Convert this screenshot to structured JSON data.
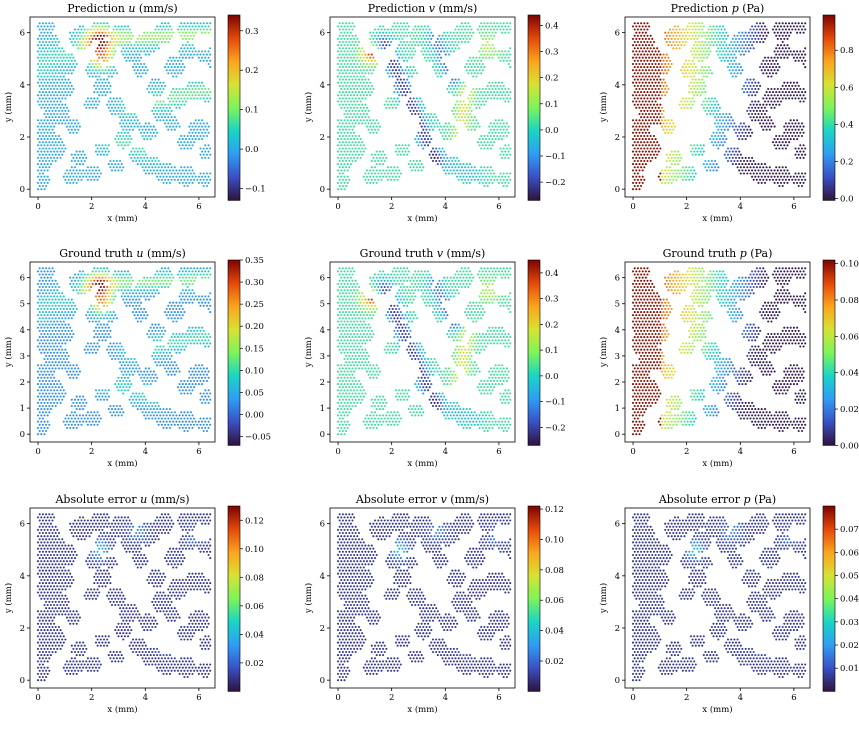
{
  "figure": {
    "colormap": [
      "#30123b",
      "#3a4fc4",
      "#2f9df5",
      "#1ad5c4",
      "#7df45a",
      "#d8e234",
      "#fba41f",
      "#e34909",
      "#7a0403"
    ],
    "panels": [
      {
        "row": 0,
        "col": 0,
        "title": "Prediction u (mm/s)",
        "title_prefix": "Prediction ",
        "title_var": "u",
        "title_suffix": " (mm/s)",
        "xlabel": "x (mm)",
        "ylabel": "y (mm)",
        "field": "u_pred",
        "cbar_ticks": [
          "0.3",
          "0.2",
          "0.1",
          "0.0",
          "−0.1"
        ],
        "cbar_tick_values": [
          0.3,
          0.2,
          0.1,
          0.0,
          -0.1
        ],
        "cbar_range": [
          -0.13,
          0.34
        ]
      },
      {
        "row": 0,
        "col": 1,
        "title": "Prediction v (mm/s)",
        "title_prefix": "Prediction ",
        "title_var": "v",
        "title_suffix": " (mm/s)",
        "xlabel": "x (mm)",
        "ylabel": "y (mm)",
        "field": "v_pred",
        "cbar_ticks": [
          "0.4",
          "0.3",
          "0.2",
          "0.1",
          "0.0",
          "−0.1",
          "−0.2"
        ],
        "cbar_tick_values": [
          0.4,
          0.3,
          0.2,
          0.1,
          0.0,
          -0.1,
          -0.2
        ],
        "cbar_range": [
          -0.27,
          0.44
        ]
      },
      {
        "row": 0,
        "col": 2,
        "title": "Prediction p (Pa)",
        "title_prefix": "Prediction ",
        "title_var": "p",
        "title_suffix": " (Pa)",
        "xlabel": "x (mm)",
        "ylabel": "y (mm)",
        "field": "p_pred",
        "cbar_ticks": [
          "0.8",
          "0.6",
          "0.4",
          "0.2",
          "0.0"
        ],
        "cbar_tick_values": [
          0.8,
          0.6,
          0.4,
          0.2,
          0.0
        ],
        "cbar_range": [
          -0.01,
          0.99
        ]
      },
      {
        "row": 1,
        "col": 0,
        "title": "Ground truth u (mm/s)",
        "title_prefix": "Ground truth ",
        "title_var": "u",
        "title_suffix": " (mm/s)",
        "xlabel": "x (mm)",
        "ylabel": "y (mm)",
        "field": "u_true",
        "cbar_ticks": [
          "0.35",
          "0.30",
          "0.25",
          "0.20",
          "0.15",
          "0.10",
          "0.05",
          "0.00",
          "−0.05"
        ],
        "cbar_tick_values": [
          0.35,
          0.3,
          0.25,
          0.2,
          0.15,
          0.1,
          0.05,
          0.0,
          -0.05
        ],
        "cbar_range": [
          -0.07,
          0.35
        ]
      },
      {
        "row": 1,
        "col": 1,
        "title": "Ground truth v (mm/s)",
        "title_prefix": "Ground truth ",
        "title_var": "v",
        "title_suffix": " (mm/s)",
        "xlabel": "x (mm)",
        "ylabel": "y (mm)",
        "field": "v_true",
        "cbar_ticks": [
          "0.4",
          "0.3",
          "0.2",
          "0.1",
          "0.0",
          "−0.1",
          "−0.2"
        ],
        "cbar_tick_values": [
          0.4,
          0.3,
          0.2,
          0.1,
          0.0,
          -0.1,
          -0.2
        ],
        "cbar_range": [
          -0.27,
          0.45
        ]
      },
      {
        "row": 1,
        "col": 2,
        "title": "Ground truth p (Pa)",
        "title_prefix": "Ground truth ",
        "title_var": "p",
        "title_suffix": " (Pa)",
        "xlabel": "x (mm)",
        "ylabel": "y (mm)",
        "field": "p_true",
        "cbar_ticks": [
          "0.10",
          "0.08",
          "0.06",
          "0.04",
          "0.02",
          "0.00"
        ],
        "cbar_tick_values": [
          0.1,
          0.08,
          0.06,
          0.04,
          0.02,
          0.0
        ],
        "cbar_range": [
          0.0,
          0.102
        ]
      },
      {
        "row": 2,
        "col": 0,
        "title": "Absolute error u (mm/s)",
        "title_prefix": "Absolute error ",
        "title_var": "u",
        "title_suffix": " (mm/s)",
        "xlabel": "x (mm)",
        "ylabel": "y (mm)",
        "field": "u_err",
        "cbar_ticks": [
          "0.12",
          "0.10",
          "0.08",
          "0.06",
          "0.04",
          "0.02"
        ],
        "cbar_tick_values": [
          0.12,
          0.1,
          0.08,
          0.06,
          0.04,
          0.02
        ],
        "cbar_range": [
          0.0,
          0.13
        ]
      },
      {
        "row": 2,
        "col": 1,
        "title": "Absolute error v (mm/s)",
        "title_prefix": "Absolute error ",
        "title_var": "v",
        "title_suffix": " (mm/s)",
        "xlabel": "x (mm)",
        "ylabel": "y (mm)",
        "field": "v_err",
        "cbar_ticks": [
          "0.12",
          "0.10",
          "0.08",
          "0.06",
          "0.04",
          "0.02"
        ],
        "cbar_tick_values": [
          0.12,
          0.1,
          0.08,
          0.06,
          0.04,
          0.02
        ],
        "cbar_range": [
          0.0,
          0.122
        ]
      },
      {
        "row": 2,
        "col": 2,
        "title": "Absolute error p (Pa)",
        "title_prefix": "Absolute error ",
        "title_var": "p",
        "title_suffix": " (Pa)",
        "xlabel": "x (mm)",
        "ylabel": "y (mm)",
        "field": "p_err",
        "cbar_ticks": [
          "0.07",
          "0.06",
          "0.05",
          "0.04",
          "0.03",
          "0.02",
          "0.01"
        ],
        "cbar_tick_values": [
          0.07,
          0.06,
          0.05,
          0.04,
          0.03,
          0.02,
          0.01
        ],
        "cbar_range": [
          0.0,
          0.08
        ]
      }
    ]
  },
  "chart_data": [
    {
      "type": "scatter",
      "title": "Prediction u (mm/s)",
      "xlabel": "x (mm)",
      "ylabel": "y (mm)",
      "xlim": [
        -0.3,
        6.6
      ],
      "ylim": [
        -0.3,
        6.6
      ],
      "xticks": [
        0,
        2,
        4,
        6
      ],
      "yticks": [
        0,
        2,
        4,
        6
      ],
      "colorbar_range": [
        -0.13,
        0.34
      ]
    },
    {
      "type": "scatter",
      "title": "Prediction v (mm/s)",
      "xlabel": "x (mm)",
      "ylabel": "y (mm)",
      "xlim": [
        -0.3,
        6.6
      ],
      "ylim": [
        -0.3,
        6.6
      ],
      "xticks": [
        0,
        2,
        4,
        6
      ],
      "yticks": [
        0,
        2,
        4,
        6
      ],
      "colorbar_range": [
        -0.27,
        0.44
      ]
    },
    {
      "type": "scatter",
      "title": "Prediction p (Pa)",
      "xlabel": "x (mm)",
      "ylabel": "y (mm)",
      "xlim": [
        -0.3,
        6.6
      ],
      "ylim": [
        -0.3,
        6.6
      ],
      "xticks": [
        0,
        2,
        4,
        6
      ],
      "yticks": [
        0,
        2,
        4,
        6
      ],
      "colorbar_range": [
        -0.01,
        0.99
      ]
    },
    {
      "type": "scatter",
      "title": "Ground truth u (mm/s)",
      "xlabel": "x (mm)",
      "ylabel": "y (mm)",
      "xlim": [
        -0.3,
        6.6
      ],
      "ylim": [
        -0.3,
        6.6
      ],
      "xticks": [
        0,
        2,
        4,
        6
      ],
      "yticks": [
        0,
        1,
        2,
        3,
        4,
        5,
        6
      ],
      "colorbar_range": [
        -0.07,
        0.35
      ]
    },
    {
      "type": "scatter",
      "title": "Ground truth v (mm/s)",
      "xlabel": "x (mm)",
      "ylabel": "y (mm)",
      "xlim": [
        -0.3,
        6.6
      ],
      "ylim": [
        -0.3,
        6.6
      ],
      "xticks": [
        0,
        2,
        4,
        6
      ],
      "yticks": [
        0,
        1,
        2,
        3,
        4,
        5,
        6
      ],
      "colorbar_range": [
        -0.27,
        0.45
      ]
    },
    {
      "type": "scatter",
      "title": "Ground truth p (Pa)",
      "xlabel": "x (mm)",
      "ylabel": "y (mm)",
      "xlim": [
        -0.3,
        6.6
      ],
      "ylim": [
        -0.3,
        6.6
      ],
      "xticks": [
        0,
        2,
        4,
        6
      ],
      "yticks": [
        0,
        1,
        2,
        3,
        4,
        5,
        6
      ],
      "colorbar_range": [
        0.0,
        0.102
      ]
    },
    {
      "type": "scatter",
      "title": "Absolute error u (mm/s)",
      "xlabel": "x (mm)",
      "ylabel": "y (mm)",
      "xlim": [
        -0.3,
        6.6
      ],
      "ylim": [
        -0.3,
        6.6
      ],
      "xticks": [
        0,
        2,
        4,
        6
      ],
      "yticks": [
        0,
        2,
        4,
        6
      ],
      "colorbar_range": [
        0.0,
        0.13
      ]
    },
    {
      "type": "scatter",
      "title": "Absolute error v (mm/s)",
      "xlabel": "x (mm)",
      "ylabel": "y (mm)",
      "xlim": [
        -0.3,
        6.6
      ],
      "ylim": [
        -0.3,
        6.6
      ],
      "xticks": [
        0,
        2,
        4,
        6
      ],
      "yticks": [
        0,
        2,
        4,
        6
      ],
      "colorbar_range": [
        0.0,
        0.122
      ]
    },
    {
      "type": "scatter",
      "title": "Absolute error p (Pa)",
      "xlabel": "x (mm)",
      "ylabel": "y (mm)",
      "xlim": [
        -0.3,
        6.6
      ],
      "ylim": [
        -0.3,
        6.6
      ],
      "xticks": [
        0,
        2,
        4,
        6
      ],
      "yticks": [
        0,
        2,
        4,
        6
      ],
      "colorbar_range": [
        0.0,
        0.08
      ]
    }
  ]
}
